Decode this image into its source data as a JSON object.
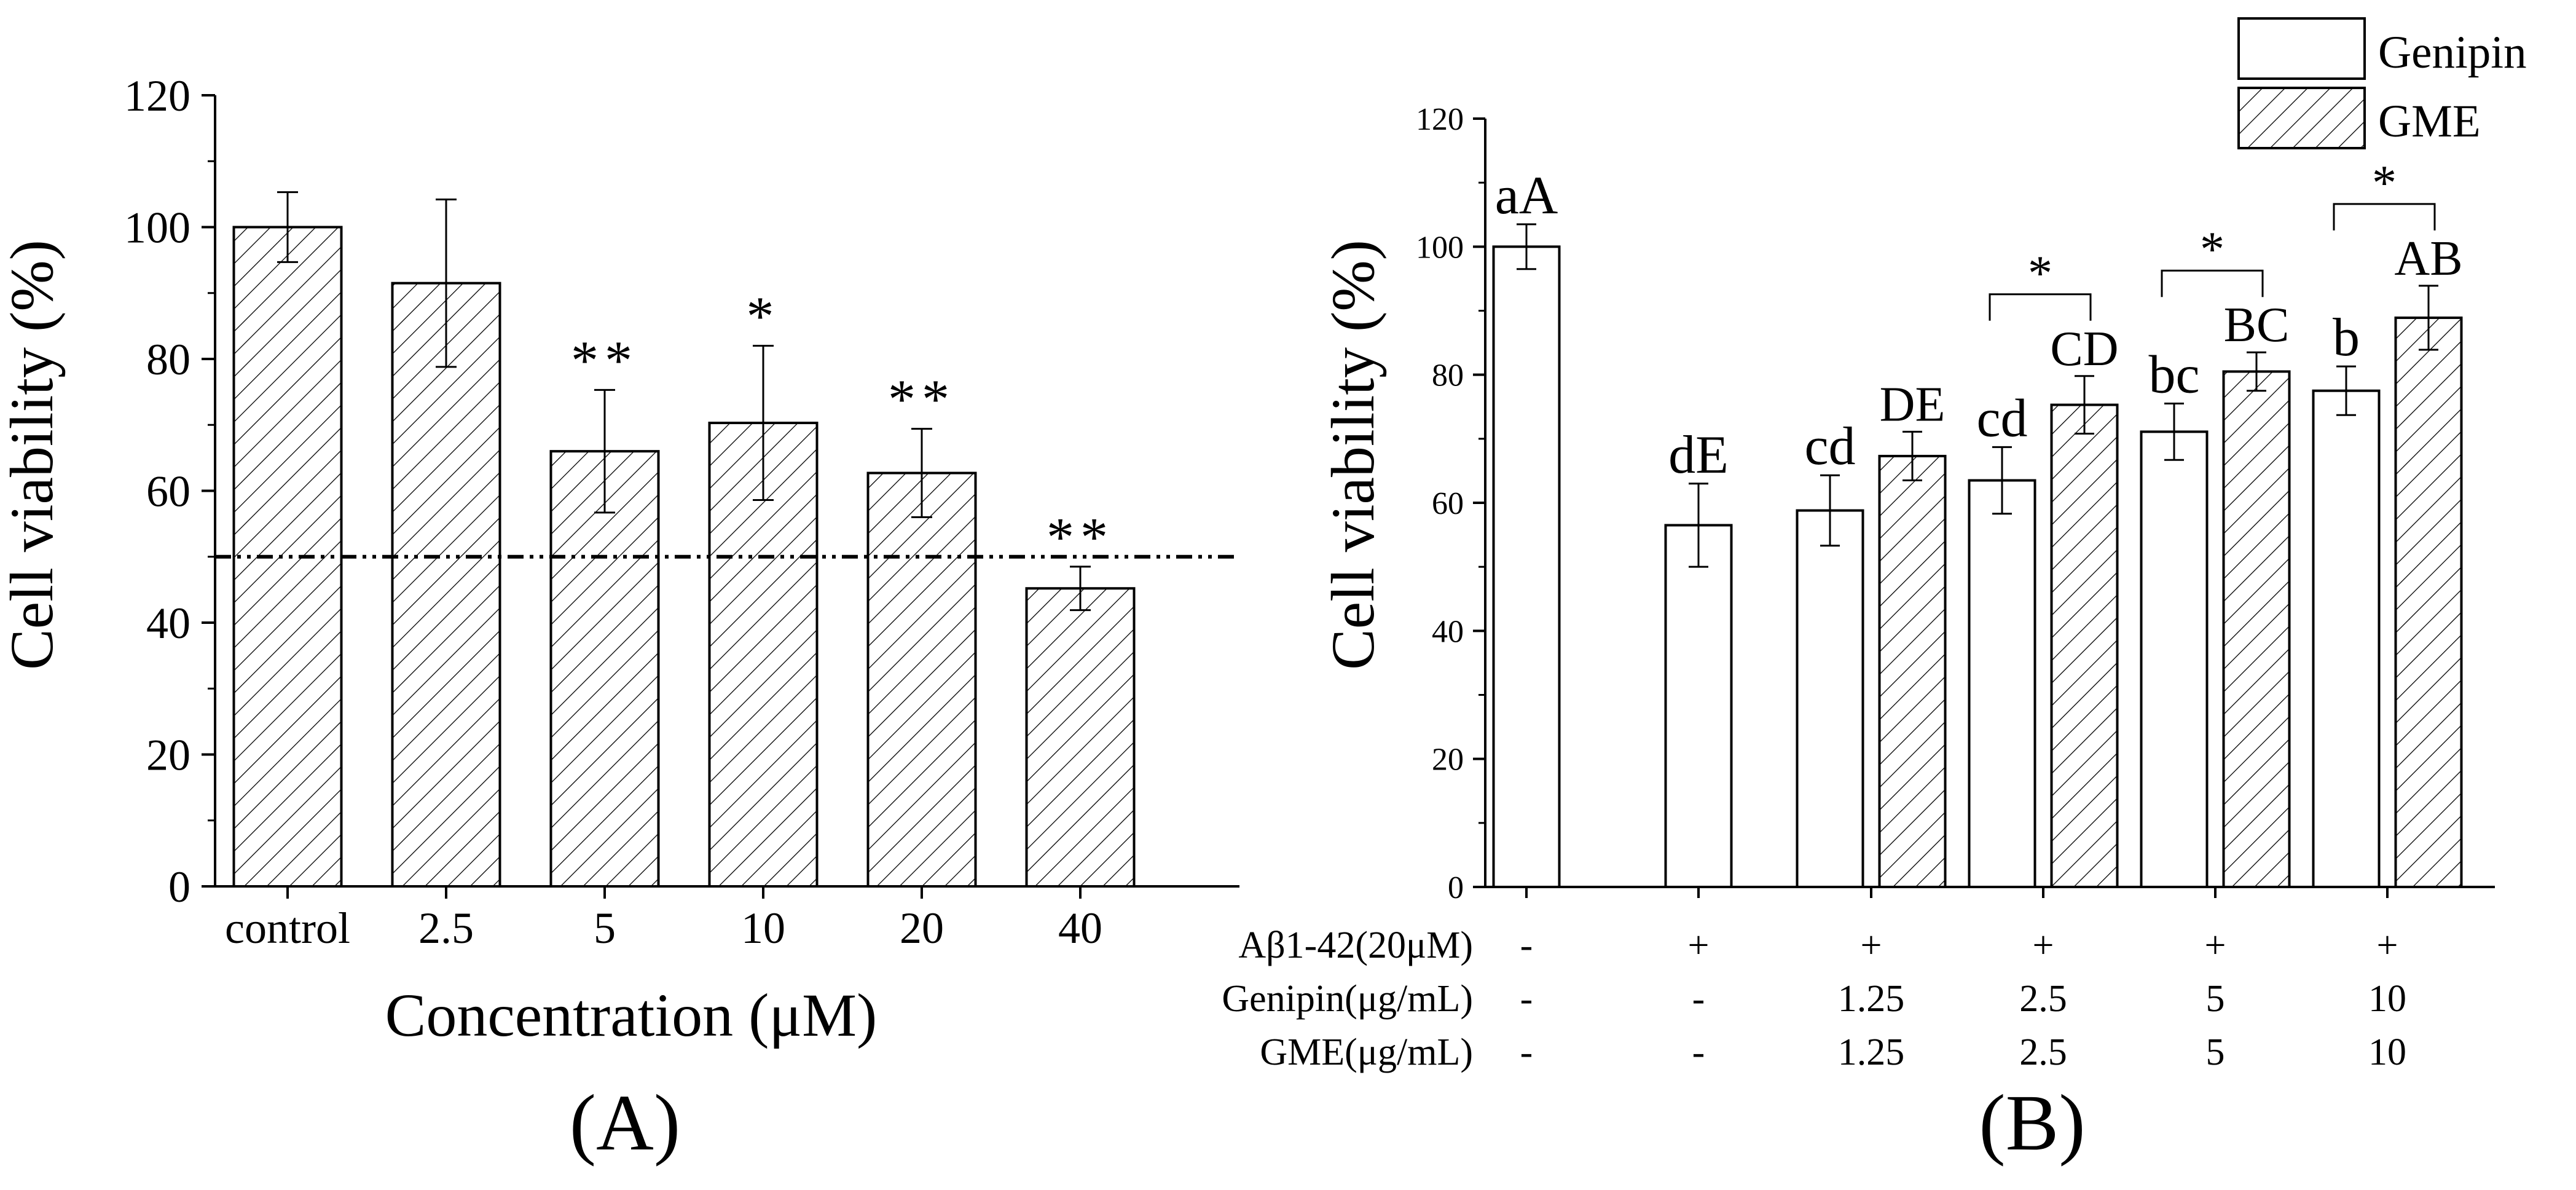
{
  "chart_data": [
    {
      "id": "A",
      "type": "bar",
      "panel_label": "(A)",
      "xlabel": "Concentration (μM)",
      "ylabel": "Cell viability (%)",
      "ylim": [
        0,
        120
      ],
      "yticks": [
        "0",
        "20",
        "40",
        "60",
        "80",
        "100",
        "120"
      ],
      "categories": [
        "control",
        "2.5",
        "5",
        "10",
        "20",
        "40"
      ],
      "values": [
        100,
        91.5,
        66,
        70.3,
        62.7,
        45.2
      ],
      "errors": [
        5.3,
        12.7,
        9.3,
        11.7,
        6.7,
        3.3
      ],
      "annotations": [
        "",
        "",
        "**",
        "*",
        "**",
        "**"
      ],
      "reference_line": {
        "y": 50,
        "style": "dash-dot"
      },
      "fill": "hatched"
    },
    {
      "id": "B",
      "type": "bar",
      "panel_label": "(B)",
      "ylabel": "Cell viability (%)",
      "ylim": [
        0,
        120
      ],
      "yticks": [
        "0",
        "20",
        "40",
        "60",
        "80",
        "100",
        "120"
      ],
      "legend": {
        "position": "top-right",
        "entries": [
          {
            "name": "Genipin",
            "fill": "open"
          },
          {
            "name": "GME",
            "fill": "hatched"
          }
        ]
      },
      "groups": [
        {
          "genipin": {
            "value": 100,
            "error": 3.5,
            "label": "aA"
          },
          "gme": null
        },
        {
          "genipin": {
            "value": 56.5,
            "error": 6.5,
            "label": "dE"
          },
          "gme": null
        },
        {
          "genipin": {
            "value": 58.8,
            "error": 5.5,
            "label": "cd"
          },
          "gme": {
            "value": 67.3,
            "error": 3.8,
            "label": "DE"
          }
        },
        {
          "genipin": {
            "value": 63.5,
            "error": 5.2,
            "label": "cd"
          },
          "gme": {
            "value": 75.3,
            "error": 4.5,
            "label": "CD"
          },
          "significance": "*"
        },
        {
          "genipin": {
            "value": 71.1,
            "error": 4.4,
            "label": "bc"
          },
          "gme": {
            "value": 80.5,
            "error": 3.0,
            "label": "BC"
          },
          "significance": "*"
        },
        {
          "genipin": {
            "value": 77.5,
            "error": 3.8,
            "label": "b"
          },
          "gme": {
            "value": 88.9,
            "error": 5.0,
            "label": "AB"
          },
          "significance": "*"
        }
      ],
      "table": {
        "rows": [
          {
            "label": "Aβ1-42(20μM)",
            "values": [
              "-",
              "+",
              "+",
              "+",
              "+",
              "+"
            ]
          },
          {
            "label": "Genipin(μg/mL)",
            "values": [
              "-",
              "-",
              "1.25",
              "2.5",
              "5",
              "10"
            ]
          },
          {
            "label": "GME(μg/mL)",
            "values": [
              "-",
              "-",
              "1.25",
              "2.5",
              "5",
              "10"
            ]
          }
        ]
      }
    }
  ]
}
